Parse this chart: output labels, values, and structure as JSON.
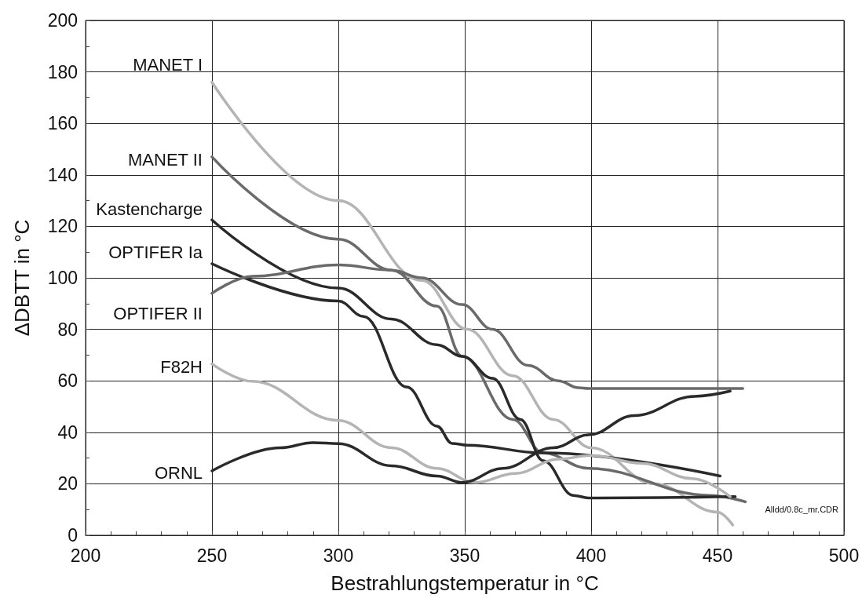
{
  "chart_data": {
    "type": "line",
    "xlabel": "Bestrahlungstemperatur in °C",
    "ylabel": "ΔDBTT in °C",
    "xlim": [
      200,
      500
    ],
    "xticks": [
      200,
      250,
      300,
      350,
      400,
      450,
      500
    ],
    "ylim": [
      0,
      200
    ],
    "yticks": [
      0,
      20,
      40,
      60,
      80,
      100,
      120,
      140,
      160,
      180,
      200
    ],
    "grid": true,
    "legend": false,
    "marker": "none",
    "line_style": "solid",
    "annotations": [
      "Alldd/0.8c_mr.CDR"
    ],
    "series": [
      {
        "name": "MANET I",
        "color": "#b4b4b4",
        "x": [
          250,
          300,
          333,
          351,
          369,
          385,
          400,
          425,
          450,
          456
        ],
        "values": [
          176,
          130,
          99,
          80,
          62,
          45,
          34,
          20,
          9,
          4
        ]
      },
      {
        "name": "MANET II",
        "color": "#6a6a6a",
        "x": [
          250,
          300,
          321,
          339,
          349,
          369,
          381,
          399,
          447,
          461
        ],
        "values": [
          147,
          115,
          103,
          89,
          69.5,
          45,
          32,
          26,
          15.5,
          13
        ]
      },
      {
        "name": "Kastencharge",
        "color": "#2a2a2a",
        "x": [
          250,
          300,
          321,
          339,
          349,
          361,
          372,
          381,
          393,
          399,
          457
        ],
        "values": [
          122.5,
          96,
          84,
          74,
          69.5,
          61,
          45,
          29,
          15.5,
          14.5,
          15
        ]
      },
      {
        "name": "OPTIFER Ia",
        "color": "#2a2a2a",
        "x": [
          250,
          300,
          310,
          327,
          339,
          345,
          351,
          381,
          451
        ],
        "values": [
          105.5,
          91,
          85,
          57.6,
          42.4,
          35.7,
          35,
          32,
          23
        ]
      },
      {
        "name": "OPTIFER II",
        "color": "#6a6a6a",
        "x": [
          250,
          266,
          300,
          321,
          333,
          349,
          361,
          375,
          387,
          395,
          399,
          460
        ],
        "values": [
          94,
          100.6,
          105,
          103,
          100,
          89.6,
          80,
          66,
          60,
          57.3,
          57,
          57
        ]
      },
      {
        "name": "F82H",
        "color": "#b4b4b4",
        "x": [
          250,
          266,
          300,
          321,
          339,
          354,
          370,
          387,
          400,
          420,
          440,
          455
        ],
        "values": [
          66.6,
          59.8,
          44.6,
          34,
          26,
          20.5,
          24,
          29.6,
          31,
          28,
          22,
          15
        ]
      },
      {
        "name": "ORNL",
        "color": "#2a2a2a",
        "x": [
          250,
          277,
          290,
          300,
          321,
          339,
          349,
          365,
          385,
          399,
          417,
          441,
          455
        ],
        "values": [
          25,
          34,
          36,
          35.6,
          27,
          23,
          20.5,
          26,
          34,
          39,
          46.5,
          54,
          56
        ]
      }
    ]
  }
}
